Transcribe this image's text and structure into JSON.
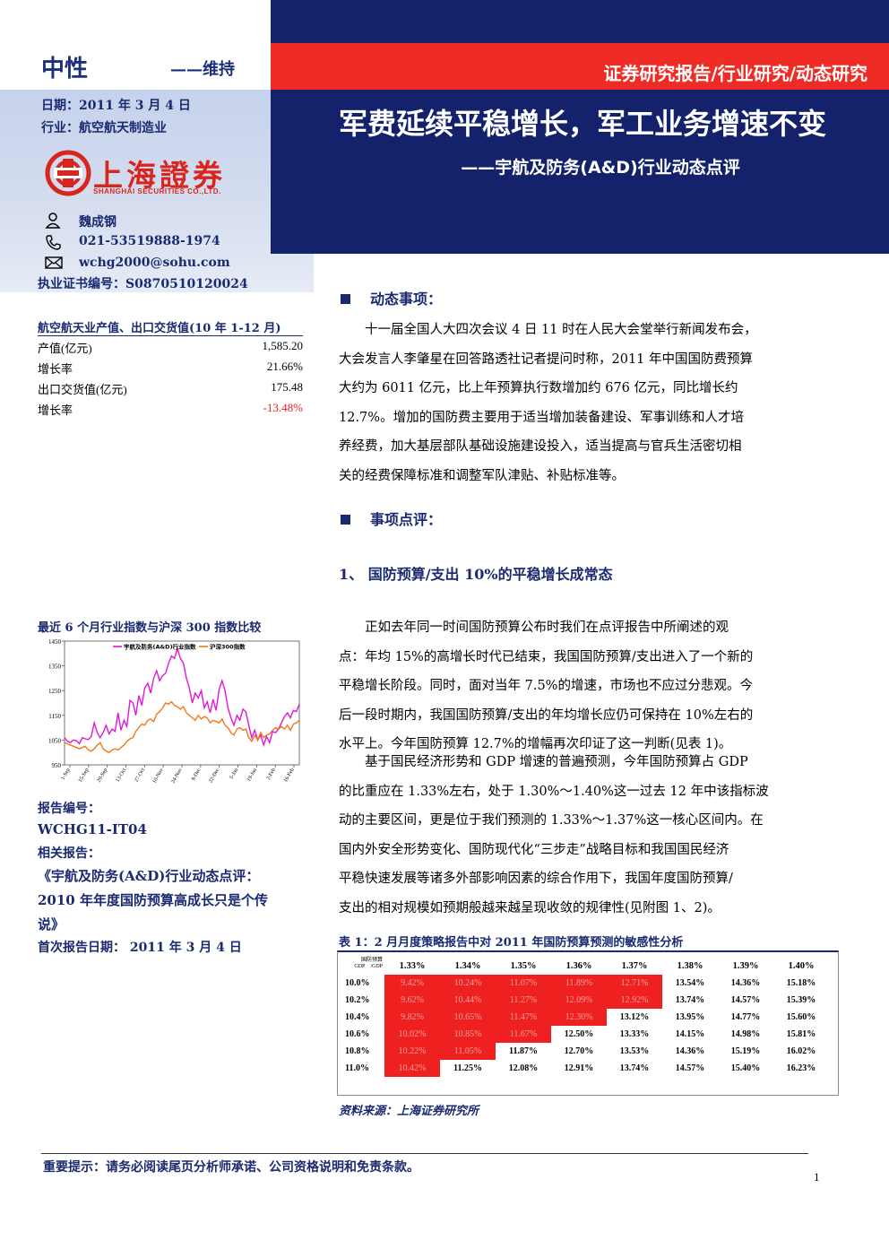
{
  "header": {
    "rating": "中性",
    "rating_change": "——维持",
    "date": "日期：2011 年 3 月 4 日",
    "industry": "行业：航空航天制造业",
    "report_type": "证券研究报告/行业研究/动态研究",
    "title": "军费延续平稳增长，军工业务增速不变",
    "subtitle": "——宇航及防务(A&D)行业动态点评",
    "logo_text": "上海證券",
    "logo_subtext": "SHANGHAI SECURITIES CO.,LTD."
  },
  "analyst": {
    "name": "魏成钢",
    "phone": "021-53519888-1974",
    "email": "wchg2000@sohu.com",
    "certificate": "执业证书编号：S0870510120024"
  },
  "sidebar_table": {
    "title": "航空航天业产值、出口交货值(10 年 1-12 月)",
    "rows": [
      {
        "label": "产值(亿元)",
        "value": "1,585.20",
        "color": "#000000"
      },
      {
        "label": "增长率",
        "value": "21.66%",
        "color": "#000000"
      },
      {
        "label": "出口交货值(亿元)",
        "value": "175.48",
        "color": "#000000"
      },
      {
        "label": "增长率",
        "value": "-13.48%",
        "color": "#e02020"
      }
    ]
  },
  "chart_data": {
    "type": "line",
    "title": "最近 6 个月行业指数与沪深 300 指数比较",
    "yticks": [
      "1450",
      "1350",
      "1250",
      "1150",
      "1050",
      "950"
    ],
    "ylim": [
      950,
      1450
    ],
    "xticks": [
      "1-Sep",
      "15-Sep",
      "29-Sep",
      "13-Oct",
      "27-Oct",
      "10-Nov",
      "24-Nov",
      "8-Dec",
      "22-Dec",
      "5-Jan",
      "19-Jan",
      "2-Feb",
      "16-Feb"
    ],
    "legend_position": "top",
    "series": [
      {
        "name": "宇航及防务(A&D)行业指数",
        "color": "#e018d8",
        "values": [
          1060,
          1045,
          1040,
          1050,
          1048,
          1035,
          1060,
          1055,
          1052,
          1065,
          1120,
          1080,
          1060,
          1080,
          1110,
          1075,
          1095,
          1085,
          1160,
          1090,
          1130,
          1105,
          1210,
          1200,
          1150,
          1230,
          1190,
          1260,
          1280,
          1240,
          1300,
          1330,
          1290,
          1310,
          1320,
          1360,
          1390,
          1380,
          1420,
          1380,
          1360,
          1300,
          1260,
          1200,
          1240,
          1220,
          1250,
          1180,
          1205,
          1160,
          1215,
          1170,
          1255,
          1290,
          1250,
          1180,
          1140,
          1110,
          1150,
          1130,
          1175,
          1165,
          1110,
          1060,
          1090,
          1050,
          1070,
          1030,
          1065,
          1040,
          1085,
          1080,
          1095,
          1120,
          1145,
          1160,
          1140,
          1170,
          1165,
          1195
        ]
      },
      {
        "name": "沪深300指数",
        "color": "#f07818",
        "values": [
          1040,
          1035,
          1030,
          1025,
          1020,
          1015,
          1020,
          1025,
          1010,
          1005,
          1015,
          1030,
          1040,
          1015,
          1005,
          1000,
          1010,
          1015,
          1010,
          1020,
          1030,
          1045,
          1055,
          1060,
          1085,
          1100,
          1115,
          1110,
          1130,
          1135,
          1125,
          1155,
          1165,
          1180,
          1200,
          1195,
          1205,
          1190,
          1185,
          1175,
          1185,
          1160,
          1150,
          1140,
          1130,
          1150,
          1135,
          1145,
          1140,
          1120,
          1130,
          1125,
          1120,
          1135,
          1110,
          1100,
          1080,
          1070,
          1095,
          1100,
          1090,
          1095,
          1060,
          1045,
          1070,
          1050,
          1080,
          1060,
          1070,
          1075,
          1090,
          1100,
          1095,
          1105,
          1095,
          1110,
          1090,
          1115,
          1120,
          1130
        ]
      }
    ]
  },
  "meta": {
    "report_no_label": "报告编号：",
    "report_no": "WCHG11-IT04",
    "related_label": "相关报告：",
    "related_line1": "《宇航及防务(A&D)行业动态点评：",
    "related_line2": "2010  年年度国防预算高成长只是个传",
    "related_line3": "说》",
    "first_date": "首次报告日期：  2011 年 3 月 4 日"
  },
  "section1": {
    "heading": "动态事项：",
    "lines": [
      "十一届全国人大四次会议 4 日 11 时在人民大会堂举行新闻发布会，",
      "大会发言人李肇星在回答路透社记者提问时称，2011 年中国国防费预算",
      "大约为 6011 亿元，比上年预算执行数增加约 676 亿元，同比增长约",
      "12.7%。增加的国防费主要用于适当增加装备建设、军事训练和人才培",
      "养经费，加大基层部队基础设施建设投入，适当提高与官兵生活密切相",
      "关的经费保障标准和调整军队津贴、补贴标准等。"
    ]
  },
  "section2": {
    "heading": "事项点评：",
    "sub_heading": "1、 国防预算/支出 10%的平稳增长成常态",
    "para1": [
      "正如去年同一时间国防预算公布时我们在点评报告中所阐述的观",
      "点：年均 15%的高增长时代已结束，我国国防预算/支出进入了一个新的",
      "平稳增长阶段。同时，面对当年 7.5%的增速，市场也不应过分悲观。今",
      "后一段时期内，我国国防预算/支出的年均增长应仍可保持在 10%左右的",
      "水平上。今年国防预算 12.7%的增幅再次印证了这一判断(见表 1)。"
    ],
    "para2": [
      "基于国民经济形势和 GDP 增速的普遍预测，今年国防预算占 GDP",
      "的比重应在 1.33%左右，处于 1.30%～1.40%这一过去 12 年中该指标波",
      "动的主要区间，更是位于我们预测的 1.33%～1.37%这一核心区间内。在",
      "国内外安全形势变化、国防现代化“三步走”战略目标和我国国民经济",
      "平稳快速发展等诸多外部影响因素的综合作用下，我国年度国防预算/",
      "支出的相对规模如预期般越来越呈现收敛的规律性(见附图 1、2)。"
    ]
  },
  "table": {
    "title": "表 1：2 月月度策略报告中对 2011 年国防预算预测的敏感性分析",
    "corner_top": "国防预算",
    "corner_mid": "GDP",
    "corner_right": "/GDP",
    "columns": [
      "1.33%",
      "1.34%",
      "1.35%",
      "1.36%",
      "1.37%",
      "1.38%",
      "1.39%",
      "1.40%"
    ],
    "rows": [
      {
        "label": "10.0%",
        "cells": [
          "9.42%",
          "10.24%",
          "11.07%",
          "11.89%",
          "12.71%",
          "13.54%",
          "14.36%",
          "15.18%"
        ],
        "red_count": 5
      },
      {
        "label": "10.2%",
        "cells": [
          "9.62%",
          "10.44%",
          "11.27%",
          "12.09%",
          "12.92%",
          "13.74%",
          "14.57%",
          "15.39%"
        ],
        "red_count": 5
      },
      {
        "label": "10.4%",
        "cells": [
          "9.82%",
          "10.65%",
          "11.47%",
          "12.30%",
          "13.12%",
          "13.95%",
          "14.77%",
          "15.60%"
        ],
        "red_count": 4
      },
      {
        "label": "10.6%",
        "cells": [
          "10.02%",
          "10.85%",
          "11.67%",
          "12.50%",
          "13.33%",
          "14.15%",
          "14.98%",
          "15.81%"
        ],
        "red_count": 3
      },
      {
        "label": "10.8%",
        "cells": [
          "10.22%",
          "11.05%",
          "11.87%",
          "12.70%",
          "13.53%",
          "14.36%",
          "15.19%",
          "16.02%"
        ],
        "red_count": 2
      },
      {
        "label": "11.0%",
        "cells": [
          "10.42%",
          "11.25%",
          "12.08%",
          "12.91%",
          "13.74%",
          "14.57%",
          "15.40%",
          "16.23%"
        ],
        "red_count": 1
      }
    ],
    "source": "资料来源：上海证券研究所"
  },
  "footer": {
    "note": "重要提示：请务必阅读尾页分析师承诺、公司资格说明和免责条款。",
    "page": "1"
  }
}
